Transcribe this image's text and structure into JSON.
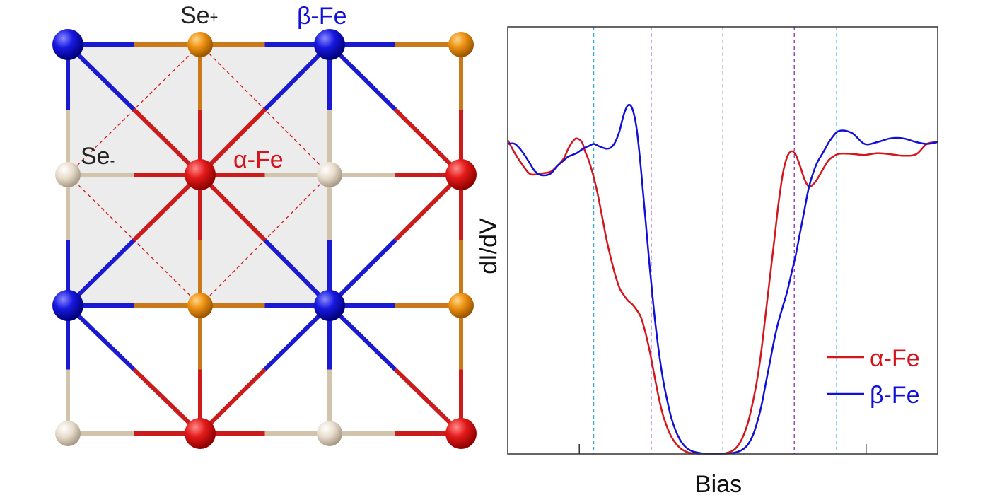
{
  "colors": {
    "alpha_fe": "#d4151c",
    "beta_fe": "#1010d8",
    "se_plus": "#e8900e",
    "se_minus": "#e6d9c6",
    "cell_fill": "#ececec",
    "marker_cyan": "#35a9e0",
    "marker_purple": "#8a2dbf",
    "marker_gray": "#bbbbbb",
    "dashed_square": "#d4151c"
  },
  "lattice": {
    "labels": {
      "se_plus": "Se",
      "se_plus_sign": "+",
      "se_minus": "Se",
      "se_minus_sign": "-",
      "alpha_fe": "α-Fe",
      "beta_fe": "β-Fe"
    },
    "atoms": [
      {
        "type": "beta_fe",
        "col": 0,
        "row": 0
      },
      {
        "type": "se_plus",
        "col": 1,
        "row": 0
      },
      {
        "type": "beta_fe",
        "col": 2,
        "row": 0
      },
      {
        "type": "se_plus",
        "col": 3,
        "row": 0
      },
      {
        "type": "se_minus",
        "col": 0,
        "row": 1
      },
      {
        "type": "alpha_fe",
        "col": 1,
        "row": 1
      },
      {
        "type": "se_minus",
        "col": 2,
        "row": 1
      },
      {
        "type": "alpha_fe",
        "col": 3,
        "row": 1
      },
      {
        "type": "beta_fe",
        "col": 0,
        "row": 2
      },
      {
        "type": "se_plus",
        "col": 1,
        "row": 2
      },
      {
        "type": "beta_fe",
        "col": 2,
        "row": 2
      },
      {
        "type": "se_plus",
        "col": 3,
        "row": 2
      },
      {
        "type": "se_minus",
        "col": 0,
        "row": 3
      },
      {
        "type": "alpha_fe",
        "col": 1,
        "row": 3
      },
      {
        "type": "se_minus",
        "col": 2,
        "row": 3
      },
      {
        "type": "alpha_fe",
        "col": 3,
        "row": 3
      }
    ]
  },
  "chart_data": {
    "type": "line",
    "xlabel": "Bias",
    "ylabel": "dI/dV",
    "xlim": [
      -1,
      1
    ],
    "ylim": [
      0,
      1
    ],
    "xticks": [
      -0.667,
      0.667
    ],
    "marker_lines": [
      {
        "x": -0.6,
        "color": "marker_cyan"
      },
      {
        "x": -0.333,
        "color": "marker_purple"
      },
      {
        "x": 0.0,
        "color": "marker_gray"
      },
      {
        "x": 0.333,
        "color": "marker_purple"
      },
      {
        "x": 0.53,
        "color": "marker_cyan"
      }
    ],
    "legend_position": "lower-right",
    "series": [
      {
        "name": "α-Fe",
        "color_key": "alpha_fe",
        "x": [
          -1,
          -0.967,
          -0.934,
          -0.9,
          -0.872,
          -0.84,
          -0.8,
          -0.77,
          -0.74,
          -0.72,
          -0.7,
          -0.68,
          -0.655,
          -0.64,
          -0.62,
          -0.6,
          -0.58,
          -0.56,
          -0.54,
          -0.52,
          -0.5,
          -0.48,
          -0.46,
          -0.44,
          -0.42,
          -0.4,
          -0.38,
          -0.36,
          -0.34,
          -0.32,
          -0.3,
          -0.28,
          -0.26,
          -0.24,
          -0.22,
          -0.2,
          -0.18,
          -0.16,
          -0.14,
          -0.12,
          -0.1,
          -0.08,
          -0.06,
          -0.04,
          -0.02,
          0,
          0.02,
          0.04,
          0.06,
          0.08,
          0.1,
          0.12,
          0.14,
          0.16,
          0.18,
          0.2,
          0.22,
          0.24,
          0.26,
          0.28,
          0.3,
          0.32,
          0.34,
          0.36,
          0.38,
          0.4,
          0.42,
          0.44,
          0.46,
          0.48,
          0.5,
          0.54,
          0.6,
          0.66,
          0.72,
          0.78,
          0.84,
          0.9,
          0.95,
          1
        ],
        "y": [
          0.85,
          0.815,
          0.785,
          0.76,
          0.757,
          0.76,
          0.765,
          0.78,
          0.8,
          0.825,
          0.845,
          0.855,
          0.845,
          0.82,
          0.79,
          0.75,
          0.7,
          0.64,
          0.58,
          0.53,
          0.485,
          0.45,
          0.43,
          0.415,
          0.405,
          0.39,
          0.37,
          0.33,
          0.28,
          0.22,
          0.16,
          0.11,
          0.075,
          0.048,
          0.03,
          0.017,
          0.009,
          0.004,
          0.002,
          0.001,
          0.001,
          0.001,
          0.001,
          0.001,
          0.001,
          0.001,
          0.003,
          0.007,
          0.015,
          0.03,
          0.055,
          0.09,
          0.14,
          0.2,
          0.28,
          0.38,
          0.48,
          0.58,
          0.68,
          0.76,
          0.805,
          0.82,
          0.81,
          0.78,
          0.745,
          0.725,
          0.73,
          0.745,
          0.765,
          0.785,
          0.8,
          0.813,
          0.813,
          0.81,
          0.815,
          0.812,
          0.808,
          0.812,
          0.84,
          0.845
        ]
      },
      {
        "name": "β-Fe",
        "color_key": "beta_fe",
        "x": [
          -1,
          -0.967,
          -0.934,
          -0.9,
          -0.872,
          -0.84,
          -0.8,
          -0.77,
          -0.74,
          -0.72,
          -0.7,
          -0.68,
          -0.655,
          -0.64,
          -0.62,
          -0.6,
          -0.58,
          -0.56,
          -0.54,
          -0.52,
          -0.5,
          -0.48,
          -0.46,
          -0.44,
          -0.42,
          -0.4,
          -0.38,
          -0.36,
          -0.34,
          -0.32,
          -0.3,
          -0.28,
          -0.26,
          -0.24,
          -0.22,
          -0.2,
          -0.18,
          -0.16,
          -0.14,
          -0.12,
          -0.1,
          -0.08,
          -0.06,
          -0.04,
          -0.02,
          0,
          0.02,
          0.04,
          0.06,
          0.08,
          0.1,
          0.12,
          0.14,
          0.16,
          0.18,
          0.2,
          0.22,
          0.24,
          0.26,
          0.28,
          0.3,
          0.32,
          0.34,
          0.36,
          0.38,
          0.4,
          0.42,
          0.44,
          0.46,
          0.48,
          0.5,
          0.54,
          0.6,
          0.66,
          0.72,
          0.78,
          0.84,
          0.9,
          0.95,
          1
        ],
        "y": [
          0.84,
          0.84,
          0.82,
          0.79,
          0.765,
          0.755,
          0.76,
          0.78,
          0.795,
          0.805,
          0.81,
          0.815,
          0.825,
          0.83,
          0.835,
          0.84,
          0.835,
          0.83,
          0.827,
          0.83,
          0.845,
          0.875,
          0.92,
          0.945,
          0.935,
          0.88,
          0.77,
          0.64,
          0.51,
          0.39,
          0.29,
          0.21,
          0.15,
          0.1,
          0.065,
          0.04,
          0.023,
          0.013,
          0.007,
          0.004,
          0.002,
          0.001,
          0.001,
          0.001,
          0.001,
          0.001,
          0.001,
          0.002,
          0.004,
          0.008,
          0.015,
          0.028,
          0.05,
          0.085,
          0.13,
          0.19,
          0.25,
          0.31,
          0.36,
          0.4,
          0.44,
          0.49,
          0.54,
          0.6,
          0.66,
          0.72,
          0.76,
          0.79,
          0.81,
          0.83,
          0.85,
          0.875,
          0.87,
          0.84,
          0.845,
          0.855,
          0.855,
          0.845,
          0.84,
          0.845
        ]
      }
    ]
  }
}
